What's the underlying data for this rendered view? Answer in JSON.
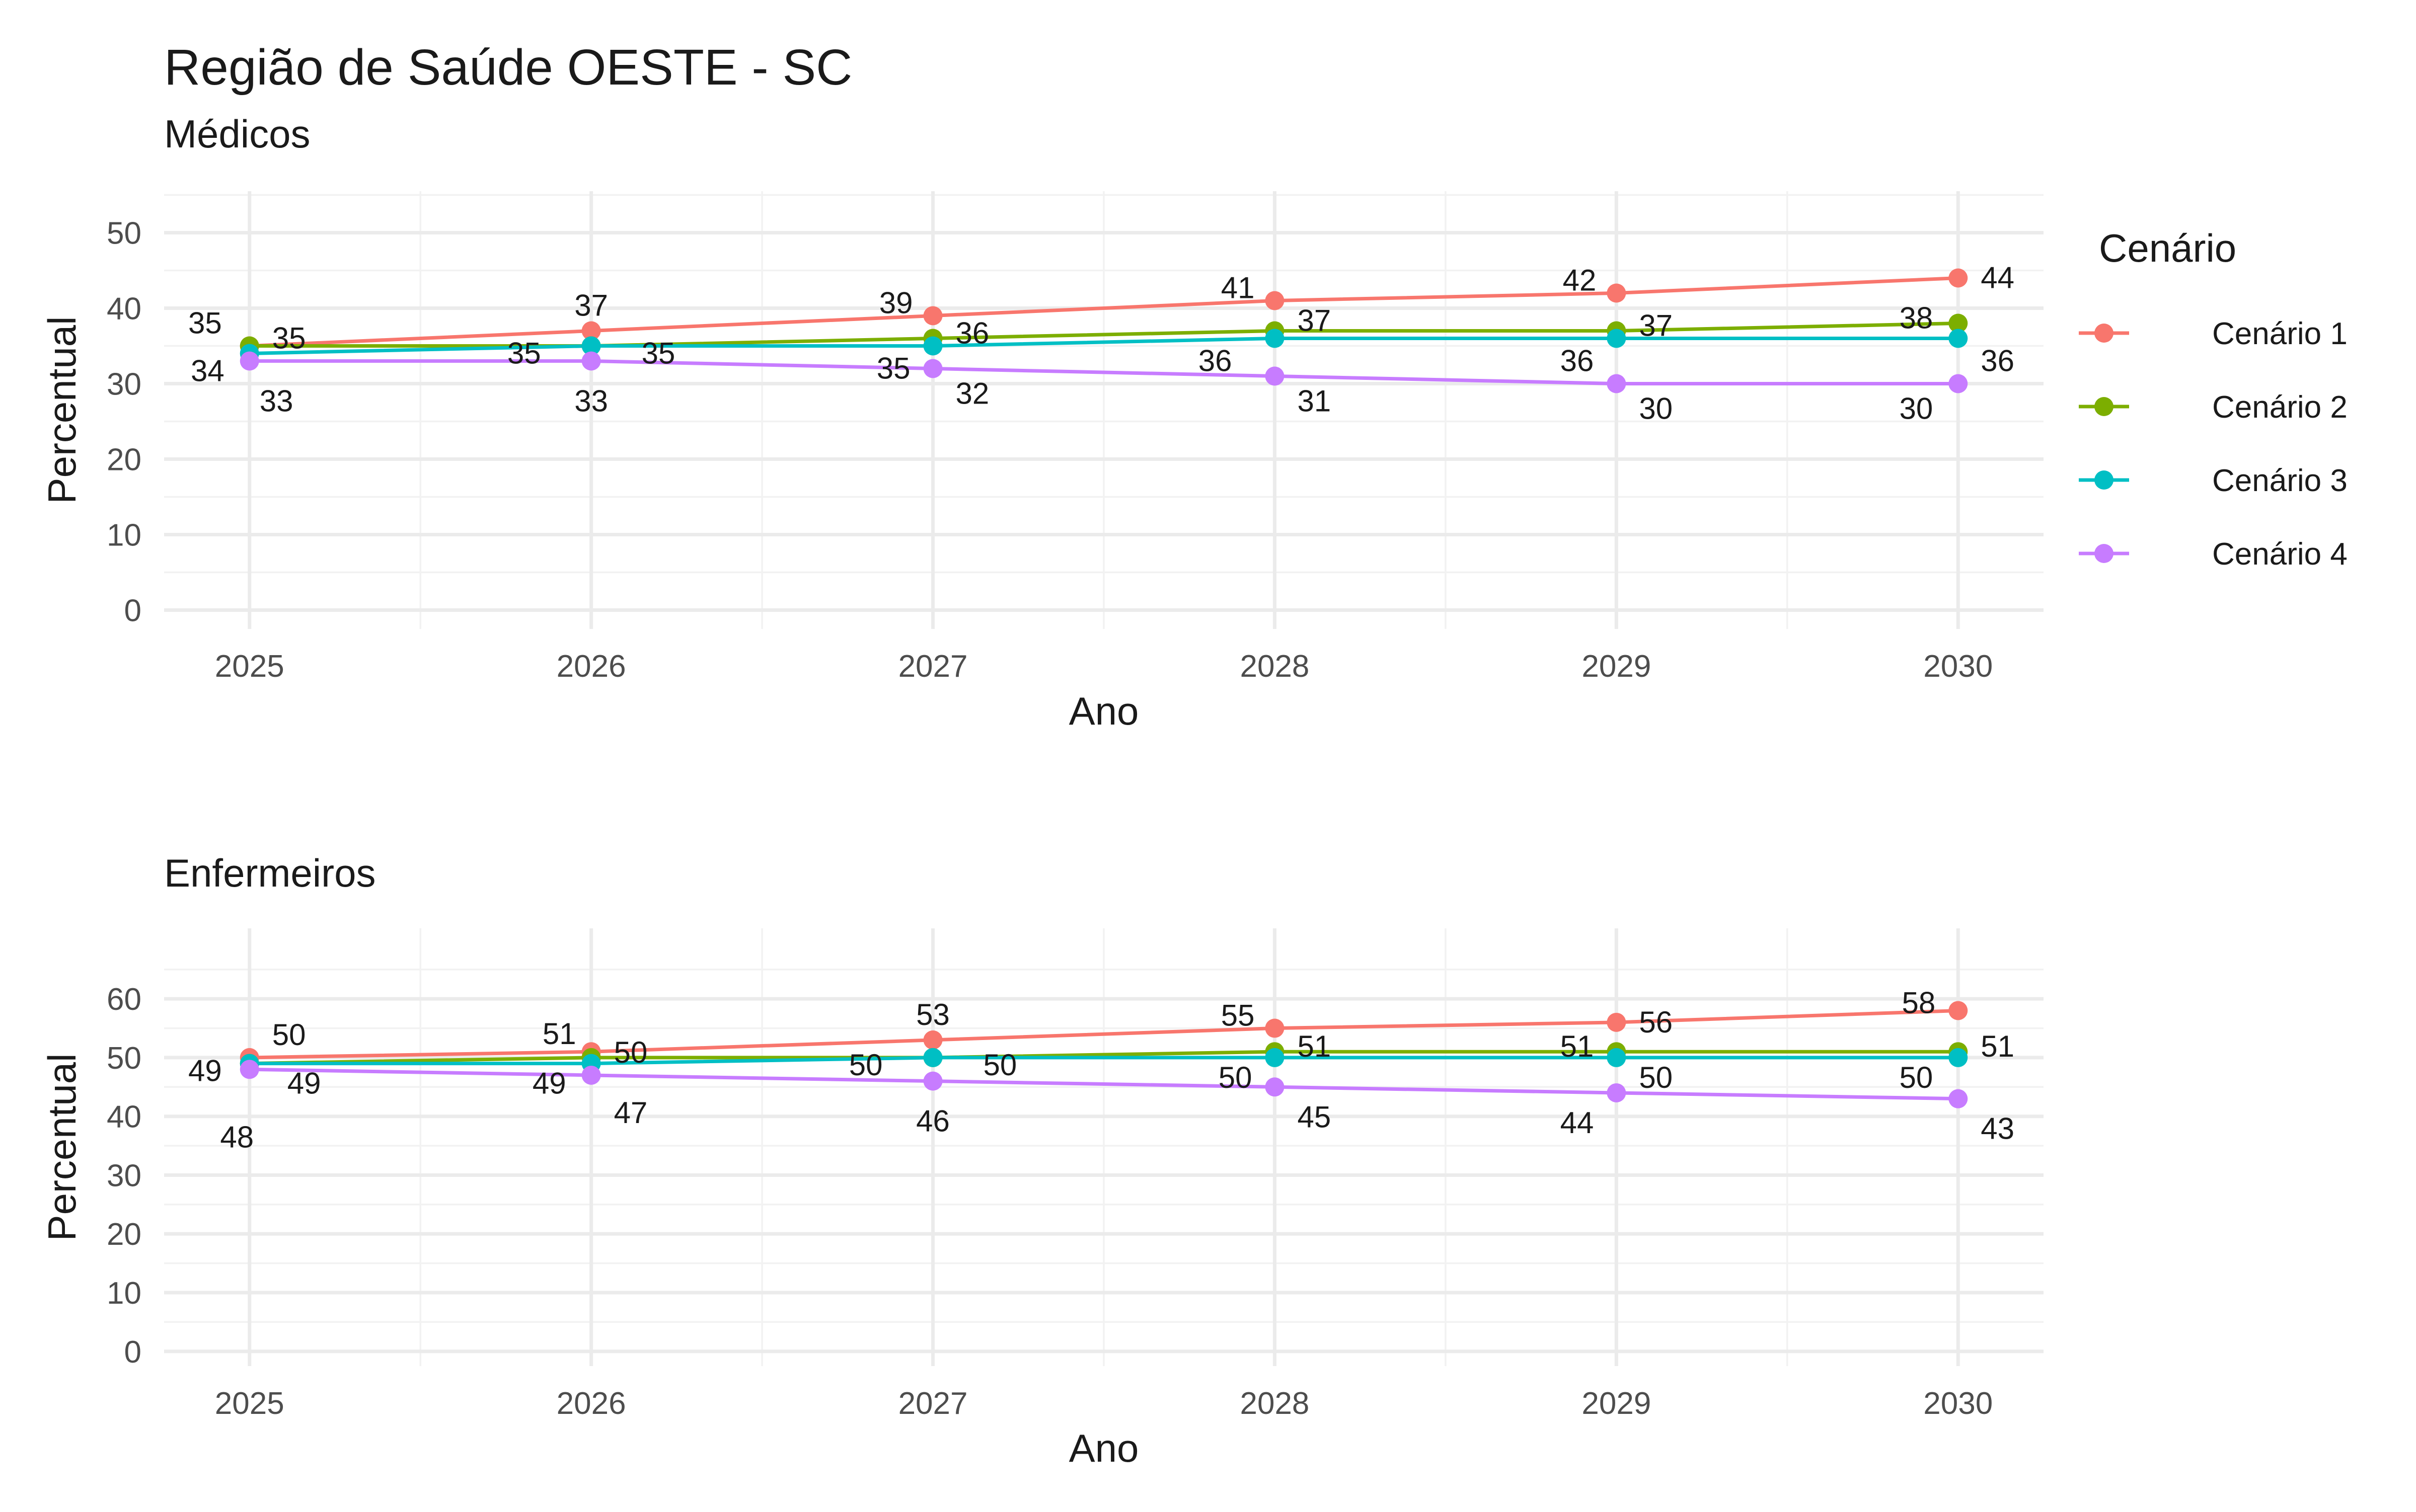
{
  "chart_data": {
    "title": "Região de Saúde OESTE - SC",
    "legend": {
      "title": "Cenário",
      "position": "right",
      "entries": [
        {
          "name": "Cenário 1",
          "color": "#F8766D"
        },
        {
          "name": "Cenário 2",
          "color": "#7CAE00"
        },
        {
          "name": "Cenário 3",
          "color": "#00BFC4"
        },
        {
          "name": "Cenário 4",
          "color": "#C77CFF"
        }
      ]
    },
    "panels": [
      {
        "subtitle": "Médicos",
        "type": "line",
        "xlabel": "Ano",
        "ylabel": "Percentual",
        "x": [
          2025,
          2026,
          2027,
          2028,
          2029,
          2030
        ],
        "x_labels": [
          "2025",
          "2026",
          "2027",
          "2028",
          "2029",
          "2030"
        ],
        "yticks": [
          0,
          10,
          20,
          30,
          40,
          50
        ],
        "ytick_labels": [
          "0",
          "10",
          "20",
          "30",
          "40",
          "50"
        ],
        "ylim": [
          -2.5,
          55.5
        ],
        "series": [
          {
            "name": "Cenário 1",
            "color": "#F8766D",
            "values": [
              35,
              37,
              39,
              41,
              42,
              44
            ],
            "labels": [
              "35",
              "37",
              "39",
              "41",
              "42",
              "44"
            ]
          },
          {
            "name": "Cenário 2",
            "color": "#7CAE00",
            "values": [
              35,
              35,
              36,
              37,
              37,
              38
            ],
            "labels": [
              "35",
              "35",
              "36",
              "37",
              "37",
              "38"
            ]
          },
          {
            "name": "Cenário 3",
            "color": "#00BFC4",
            "values": [
              34,
              35,
              35,
              36,
              36,
              36
            ],
            "labels": [
              "34",
              "35",
              "35",
              "36",
              "36",
              "36"
            ]
          },
          {
            "name": "Cenário 4",
            "color": "#C77CFF",
            "values": [
              33,
              33,
              32,
              31,
              30,
              30
            ],
            "labels": [
              "33",
              "33",
              "32",
              "31",
              "30",
              "30"
            ]
          }
        ]
      },
      {
        "subtitle": "Enfermeiros",
        "type": "line",
        "xlabel": "Ano",
        "ylabel": "Percentual",
        "x": [
          2025,
          2026,
          2027,
          2028,
          2029,
          2030
        ],
        "x_labels": [
          "2025",
          "2026",
          "2027",
          "2028",
          "2029",
          "2030"
        ],
        "yticks": [
          0,
          10,
          20,
          30,
          40,
          50,
          60
        ],
        "ytick_labels": [
          "0",
          "10",
          "20",
          "30",
          "40",
          "50",
          "60"
        ],
        "ylim": [
          -2.5,
          72
        ],
        "series": [
          {
            "name": "Cenário 1",
            "color": "#F8766D",
            "values": [
              50,
              51,
              53,
              55,
              56,
              58
            ],
            "labels": [
              "50",
              "51",
              "53",
              "55",
              "56",
              "58"
            ]
          },
          {
            "name": "Cenário 2",
            "color": "#7CAE00",
            "values": [
              49,
              50,
              50,
              51,
              51,
              51
            ],
            "labels": [
              "49",
              "50",
              "50",
              "51",
              "51",
              "51"
            ]
          },
          {
            "name": "Cenário 3",
            "color": "#00BFC4",
            "values": [
              49,
              49,
              50,
              50,
              50,
              50
            ],
            "labels": [
              "49",
              "49",
              "50",
              "50",
              "50",
              "50"
            ]
          },
          {
            "name": "Cenário 4",
            "color": "#C77CFF",
            "values": [
              48,
              47,
              46,
              45,
              44,
              43
            ],
            "labels": [
              "48",
              "47",
              "46",
              "45",
              "44",
              "43"
            ]
          }
        ]
      }
    ]
  }
}
